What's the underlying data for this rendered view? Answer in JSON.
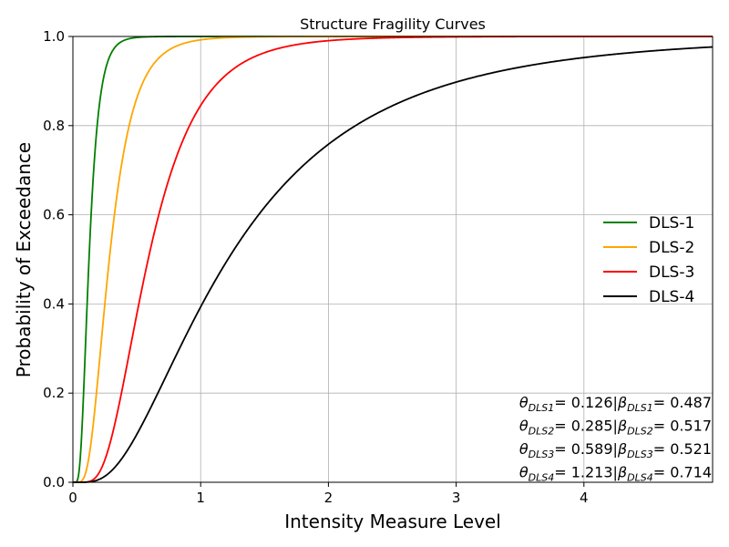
{
  "chart_data": {
    "type": "line",
    "title": "Structure Fragility Curves",
    "xlabel": "Intensity Measure Level",
    "ylabel": "Probability of Exceedance",
    "xlim": [
      0,
      5
    ],
    "ylim": [
      0,
      1
    ],
    "grid": true,
    "legend_placement": "right",
    "xticks": [
      "0",
      "1",
      "2",
      "3",
      "4"
    ],
    "yticks": [
      "0.0",
      "0.2",
      "0.4",
      "0.6",
      "0.8",
      "1.0"
    ],
    "series": [
      {
        "name": "DLS-1",
        "color": "#008000",
        "theta": 0.126,
        "beta": 0.487
      },
      {
        "name": "DLS-2",
        "color": "#ffa500",
        "theta": 0.285,
        "beta": 0.517
      },
      {
        "name": "DLS-3",
        "color": "#ff0000",
        "theta": 0.589,
        "beta": 0.521
      },
      {
        "name": "DLS-4",
        "color": "#000000",
        "theta": 1.213,
        "beta": 0.714
      }
    ],
    "annotations": [
      {
        "theta_label": "θ",
        "theta_sub": "DLS1",
        "theta_value": "= 0.126",
        "sep": "|",
        "beta_label": "β",
        "beta_sub": "DLS1",
        "beta_value": "= 0.487"
      },
      {
        "theta_label": "θ",
        "theta_sub": "DLS2",
        "theta_value": "= 0.285",
        "sep": "|",
        "beta_label": "β",
        "beta_sub": "DLS2",
        "beta_value": "= 0.517"
      },
      {
        "theta_label": "θ",
        "theta_sub": "DLS3",
        "theta_value": "= 0.589",
        "sep": "|",
        "beta_label": "β",
        "beta_sub": "DLS3",
        "beta_value": "= 0.521"
      },
      {
        "theta_label": "θ",
        "theta_sub": "DLS4",
        "theta_value": "= 1.213",
        "sep": "|",
        "beta_label": "β",
        "beta_sub": "DLS4",
        "beta_value": "= 0.714"
      }
    ]
  }
}
